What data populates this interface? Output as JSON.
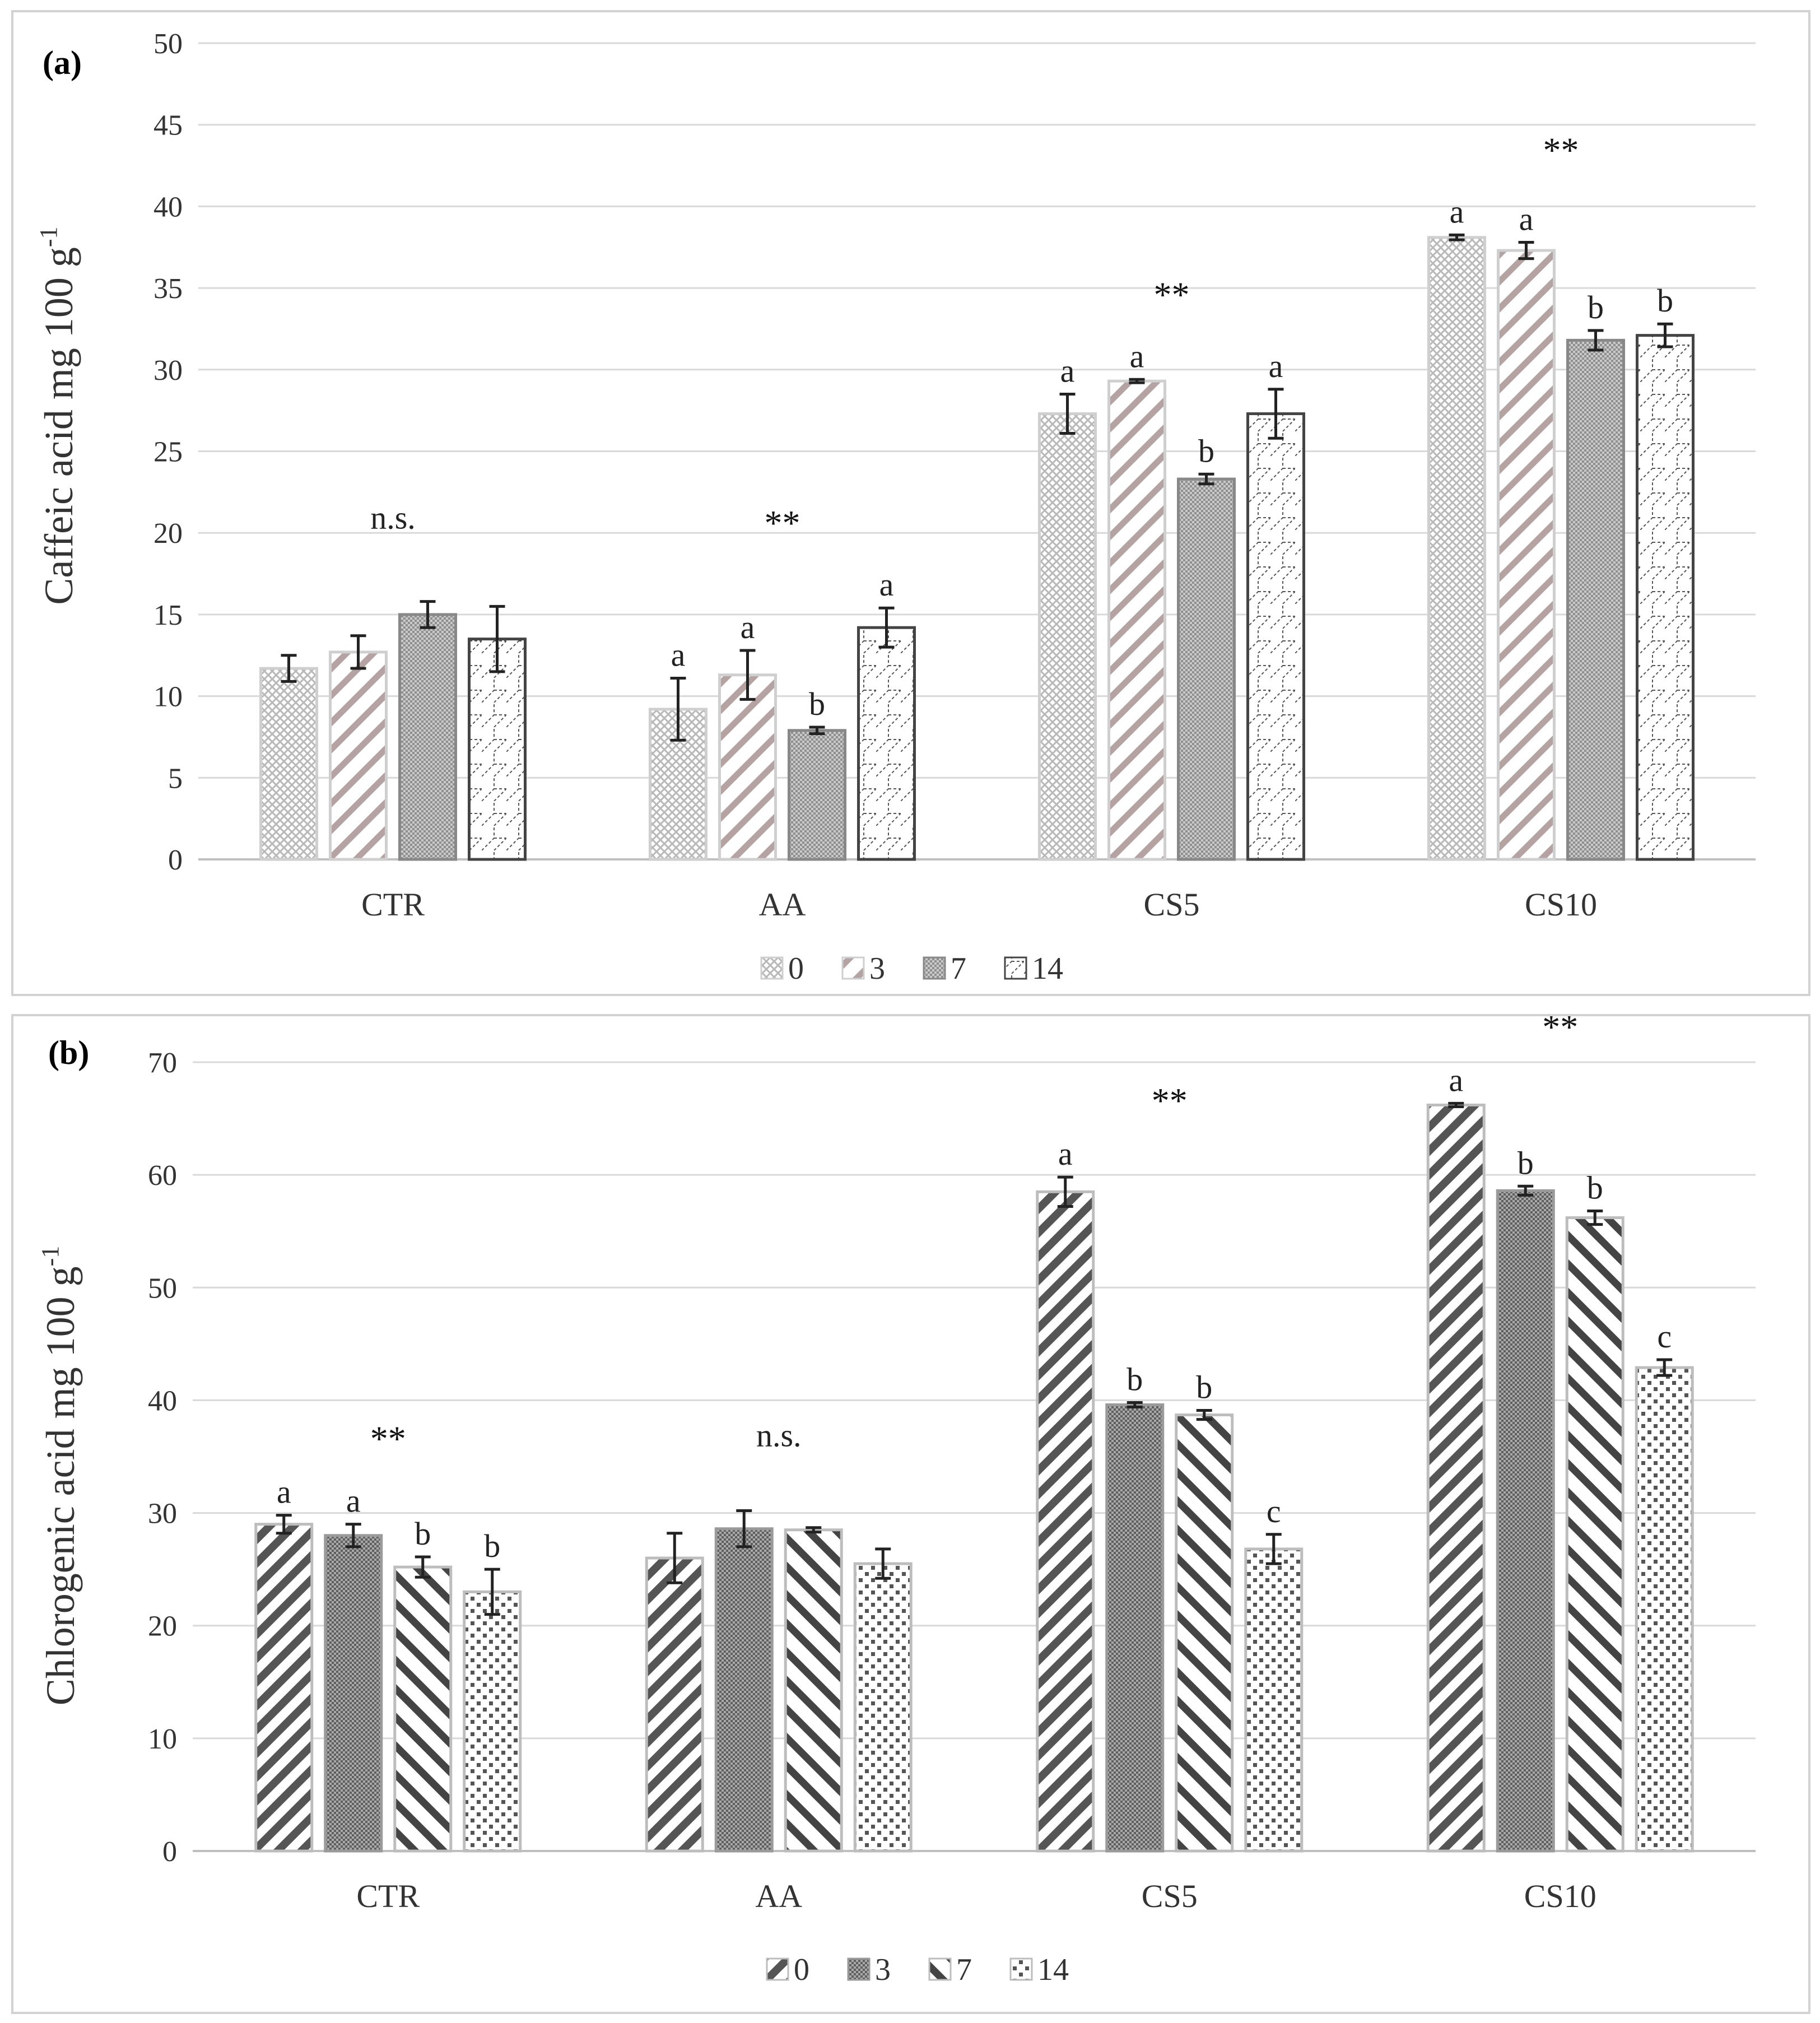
{
  "chart_data": [
    {
      "type": "bar",
      "panel_label": "(a)",
      "ylabel": "Caffeic acid mg 100 g",
      "ylabel_sup": "-1",
      "ylim": [
        0,
        50
      ],
      "yticks": [
        0,
        5,
        10,
        15,
        20,
        25,
        30,
        35,
        40,
        45,
        50
      ],
      "grid": true,
      "categories": [
        "CTR",
        "AA",
        "CS5",
        "CS10"
      ],
      "legend_position": "bottom",
      "series": [
        {
          "name": "0",
          "pattern": "cross",
          "values": [
            11.7,
            9.2,
            27.3,
            38.1
          ],
          "errors": [
            0.8,
            1.9,
            1.2,
            0.15
          ],
          "letters": [
            "",
            "a",
            "a",
            "a"
          ]
        },
        {
          "name": "3",
          "pattern": "diag",
          "values": [
            12.7,
            11.3,
            29.3,
            37.3
          ],
          "errors": [
            1.0,
            1.5,
            0.1,
            0.5
          ],
          "letters": [
            "",
            "a",
            "a",
            "a"
          ]
        },
        {
          "name": "7",
          "pattern": "dense",
          "values": [
            15.0,
            7.9,
            23.3,
            31.8
          ],
          "errors": [
            0.8,
            0.2,
            0.3,
            0.6
          ],
          "letters": [
            "",
            "b",
            "b",
            "b"
          ]
        },
        {
          "name": "14",
          "pattern": "wave",
          "values": [
            13.5,
            14.2,
            27.3,
            32.1
          ],
          "errors": [
            2.0,
            1.2,
            1.5,
            0.7
          ],
          "letters": [
            "",
            "a",
            "a",
            "b"
          ]
        }
      ],
      "group_labels": [
        "n.s.",
        "**",
        "**",
        "**"
      ]
    },
    {
      "type": "bar",
      "panel_label": "(b)",
      "ylabel": "Chlorogenic acid  mg 100 g",
      "ylabel_sup": "-1",
      "ylim": [
        0,
        70
      ],
      "yticks": [
        0,
        10,
        20,
        30,
        40,
        50,
        60,
        70
      ],
      "grid": true,
      "categories": [
        "CTR",
        "AA",
        "CS5",
        "CS10"
      ],
      "legend_position": "bottom",
      "series": [
        {
          "name": "0",
          "pattern": "thickdiag",
          "values": [
            29.0,
            26.0,
            58.5,
            66.2
          ],
          "errors": [
            0.8,
            2.2,
            1.3,
            0.15
          ],
          "letters": [
            "a",
            "",
            "a",
            "a"
          ]
        },
        {
          "name": "3",
          "pattern": "dense",
          "values": [
            28.0,
            28.6,
            39.6,
            58.6
          ],
          "errors": [
            1.0,
            1.6,
            0.2,
            0.4
          ],
          "letters": [
            "a",
            "",
            "b",
            "b"
          ]
        },
        {
          "name": "7",
          "pattern": "backdiag",
          "values": [
            25.2,
            28.5,
            38.7,
            56.2
          ],
          "errors": [
            0.9,
            0.2,
            0.4,
            0.6
          ],
          "letters": [
            "b",
            "",
            "b",
            "b"
          ]
        },
        {
          "name": "14",
          "pattern": "dots",
          "values": [
            23.0,
            25.5,
            26.8,
            42.9
          ],
          "errors": [
            2.0,
            1.3,
            1.3,
            0.7
          ],
          "letters": [
            "b",
            "",
            "c",
            "c"
          ]
        }
      ],
      "group_labels": [
        "**",
        "n.s.",
        "**",
        "**"
      ]
    }
  ]
}
